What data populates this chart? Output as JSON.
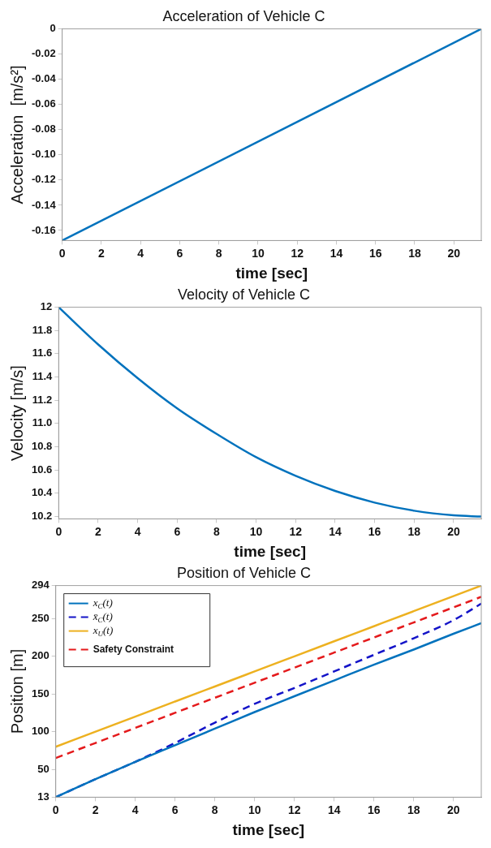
{
  "chart_data": [
    {
      "type": "line",
      "title": "Acceleration of Vehicle C",
      "xlabel": "time [sec]",
      "ylabel": "Acceleration  [m/s²]",
      "x": [
        0,
        21.4
      ],
      "series": [
        {
          "color": "#0072bd",
          "values": [
            -0.168,
            0
          ]
        }
      ],
      "xlim": [
        0,
        21.4
      ],
      "xticks": [
        0,
        2,
        4,
        6,
        8,
        10,
        12,
        14,
        16,
        18,
        20
      ],
      "ylim": [
        -0.168,
        0
      ],
      "yticks": [
        -0.16,
        -0.14,
        -0.12,
        {
          "value": -0.1,
          "label": "-0.10"
        },
        -0.08,
        -0.06,
        -0.04,
        -0.02,
        0
      ],
      "grid": false
    },
    {
      "type": "line",
      "title": "Velocity of Vehicle C",
      "xlabel": "time [sec]",
      "ylabel": "Velocity [m/s]",
      "x": [
        0,
        2,
        4,
        6,
        8,
        10,
        12,
        14,
        16,
        18,
        20,
        21.4
      ],
      "series": [
        {
          "color": "#0072bd",
          "values": [
            12,
            11.68,
            11.39,
            11.13,
            10.91,
            10.71,
            10.55,
            10.42,
            10.32,
            10.25,
            10.21,
            10.2
          ]
        }
      ],
      "xlim": [
        0,
        21.4
      ],
      "xticks": [
        0,
        2,
        4,
        6,
        8,
        10,
        12,
        14,
        16,
        18,
        20
      ],
      "ylim": [
        10.18,
        12
      ],
      "yticks": [
        {
          "value": 10.2,
          "label": "10.2"
        },
        {
          "value": 10.4,
          "label": "10.4"
        },
        {
          "value": 10.6,
          "label": "10.6"
        },
        {
          "value": 10.8,
          "label": "10.8"
        },
        {
          "value": 11,
          "label": "11.0"
        },
        {
          "value": 11.2,
          "label": "11.2"
        },
        {
          "value": 11.4,
          "label": "11.4"
        },
        {
          "value": 11.6,
          "label": "11.6"
        },
        {
          "value": 11.8,
          "label": "11.8"
        },
        12
      ],
      "grid": false
    },
    {
      "type": "line",
      "title": "Position of Vehicle C",
      "xlabel": "time [sec]",
      "ylabel": "Position [m]",
      "x": [
        0,
        2,
        4,
        6,
        8,
        10,
        12,
        14,
        16,
        18,
        20,
        21.4
      ],
      "series": [
        {
          "name": "x$_{C}$(t)",
          "color": "#0072bd",
          "line_style": "solid",
          "values": [
            13,
            37,
            60,
            82,
            104,
            126,
            147,
            168,
            189,
            209,
            230,
            244
          ]
        },
        {
          "name": "x̄$_{C}$(t)",
          "color": "#1414c8",
          "line_style": "dashed",
          "values": [
            13,
            37,
            60,
            85,
            112,
            137,
            158,
            180,
            202,
            224,
            248,
            270
          ]
        },
        {
          "name": "x$_{U}$(t)",
          "color": "#edb120",
          "line_style": "solid",
          "values": [
            80,
            100,
            120,
            140,
            160,
            180,
            200,
            220,
            240,
            260,
            280,
            294
          ]
        },
        {
          "name": "Safety Constraint",
          "color": "#e41a1c",
          "line_style": "dashed",
          "values": [
            65,
            85,
            105,
            125,
            145,
            165,
            185,
            205,
            225,
            245,
            265,
            279
          ]
        }
      ],
      "xlim": [
        0,
        21.4
      ],
      "xticks": [
        0,
        2,
        4,
        6,
        8,
        10,
        12,
        14,
        16,
        18,
        20
      ],
      "ylim": [
        13,
        294
      ],
      "yticks": [
        13,
        50,
        100,
        150,
        200,
        250,
        294
      ],
      "grid": false,
      "legend": "top left"
    }
  ]
}
